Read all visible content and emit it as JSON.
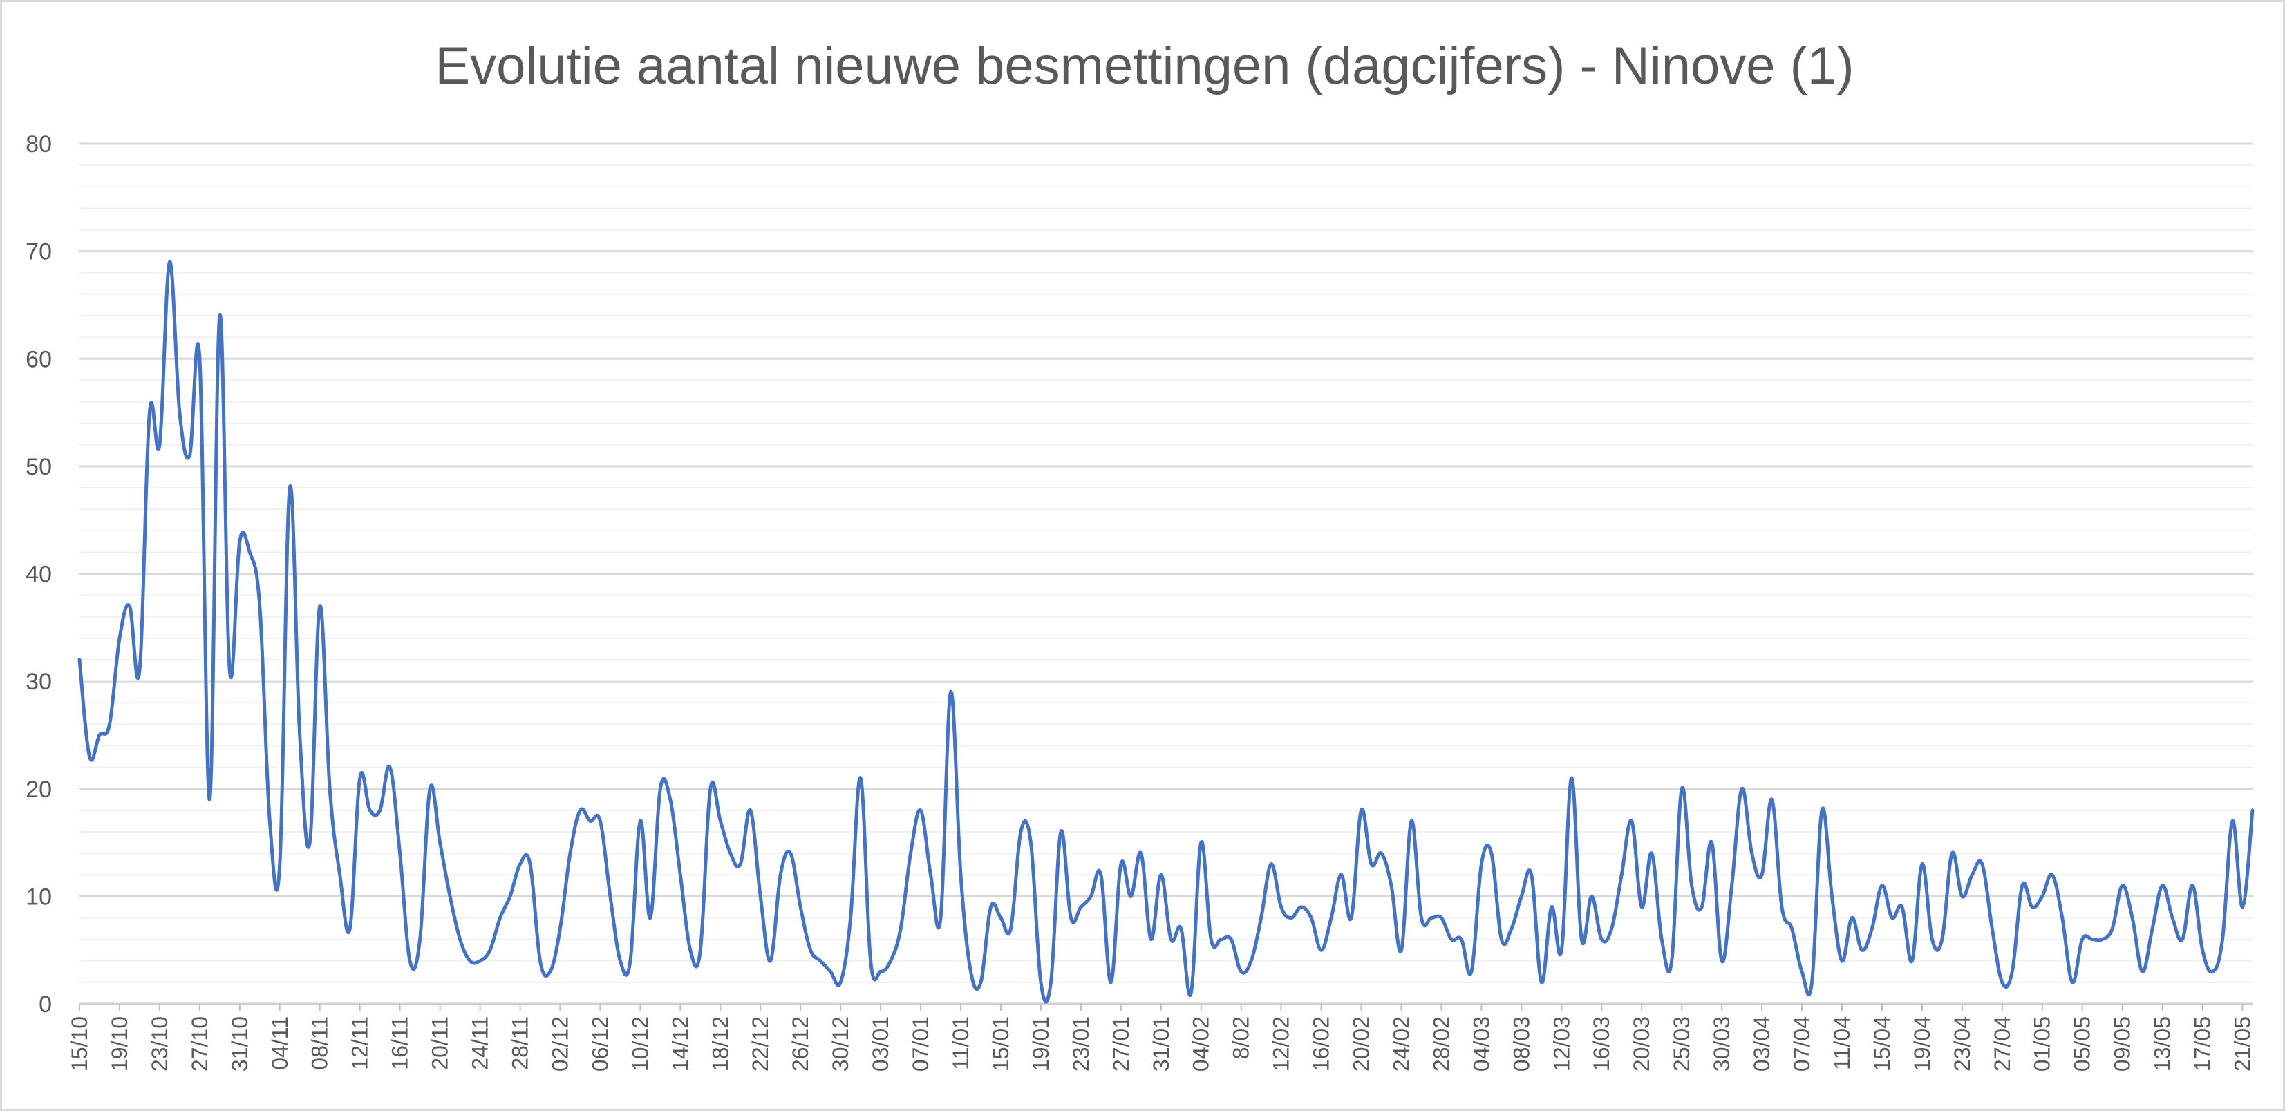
{
  "chart_data": {
    "type": "line",
    "title": "Evolutie aantal nieuwe besmettingen (dagcijfers) - Ninove (1)",
    "xlabel": "",
    "ylabel": "",
    "ylim": [
      0,
      80
    ],
    "y_major_ticks": [
      0,
      10,
      20,
      30,
      40,
      50,
      60,
      70,
      80
    ],
    "y_minor_step": 2,
    "grid": true,
    "legend": "none",
    "series_color": "#4472c4",
    "x_tick_labels": [
      "15/10",
      "19/10",
      "23/10",
      "27/10",
      "31/10",
      "04/11",
      "08/11",
      "12/11",
      "16/11",
      "20/11",
      "24/11",
      "28/11",
      "02/12",
      "06/12",
      "10/12",
      "14/12",
      "18/12",
      "22/12",
      "26/12",
      "30/12",
      "03/01",
      "07/01",
      "11/01",
      "15/01",
      "19/01",
      "23/01",
      "27/01",
      "31/01",
      "04/02",
      "8/02",
      "12/02",
      "16/02",
      "20/02",
      "24/02",
      "28/02",
      "04/03",
      "08/03",
      "12/03",
      "16/03",
      "20/03",
      "25/03",
      "30/03",
      "03/04",
      "07/04",
      "11/04",
      "15/04",
      "19/04",
      "23/04",
      "27/04",
      "01/05",
      "05/05",
      "09/05",
      "13/05",
      "17/05",
      "21/05"
    ],
    "values": [
      32,
      23,
      25,
      26,
      34,
      37,
      31,
      55,
      52,
      69,
      55,
      51,
      60,
      19,
      64,
      31,
      43,
      42,
      37,
      17,
      13,
      48,
      25,
      15,
      37,
      20,
      12,
      7,
      21,
      18,
      18,
      22,
      14,
      4,
      6,
      20,
      15,
      10,
      6,
      4,
      4,
      5,
      8,
      10,
      13,
      13,
      4,
      3,
      7,
      14,
      18,
      17,
      17,
      10,
      4,
      4,
      17,
      8,
      20,
      19,
      12,
      5,
      5,
      20,
      17,
      14,
      13,
      18,
      10,
      4,
      12,
      14,
      9,
      5,
      4,
      3,
      2,
      8,
      21,
      4,
      3,
      4,
      7,
      14,
      18,
      12,
      8,
      29,
      12,
      3,
      2,
      9,
      8,
      7,
      16,
      15,
      2,
      2,
      16,
      8,
      9,
      10,
      12,
      2,
      13,
      10,
      14,
      6,
      12,
      6,
      7,
      1,
      15,
      6,
      6,
      6,
      3,
      4,
      8,
      13,
      9,
      8,
      9,
      8,
      5,
      8,
      12,
      8,
      18,
      13,
      14,
      11,
      5,
      17,
      8,
      8,
      8,
      6,
      6,
      3,
      13,
      14,
      6,
      7,
      10,
      12,
      2,
      9,
      5,
      21,
      6,
      10,
      6,
      7,
      12,
      17,
      9,
      14,
      6,
      4,
      20,
      11,
      9,
      15,
      4,
      11,
      20,
      14,
      12,
      19,
      9,
      7,
      3,
      2,
      18,
      10,
      4,
      8,
      5,
      7,
      11,
      8,
      9,
      4,
      13,
      6,
      6,
      14,
      10,
      12,
      13,
      7,
      2,
      3,
      11,
      9,
      10,
      12,
      8,
      2,
      6,
      6,
      6,
      7,
      11,
      8,
      3,
      7,
      11,
      8,
      6,
      11,
      5,
      3,
      6,
      17,
      9,
      18
    ]
  }
}
